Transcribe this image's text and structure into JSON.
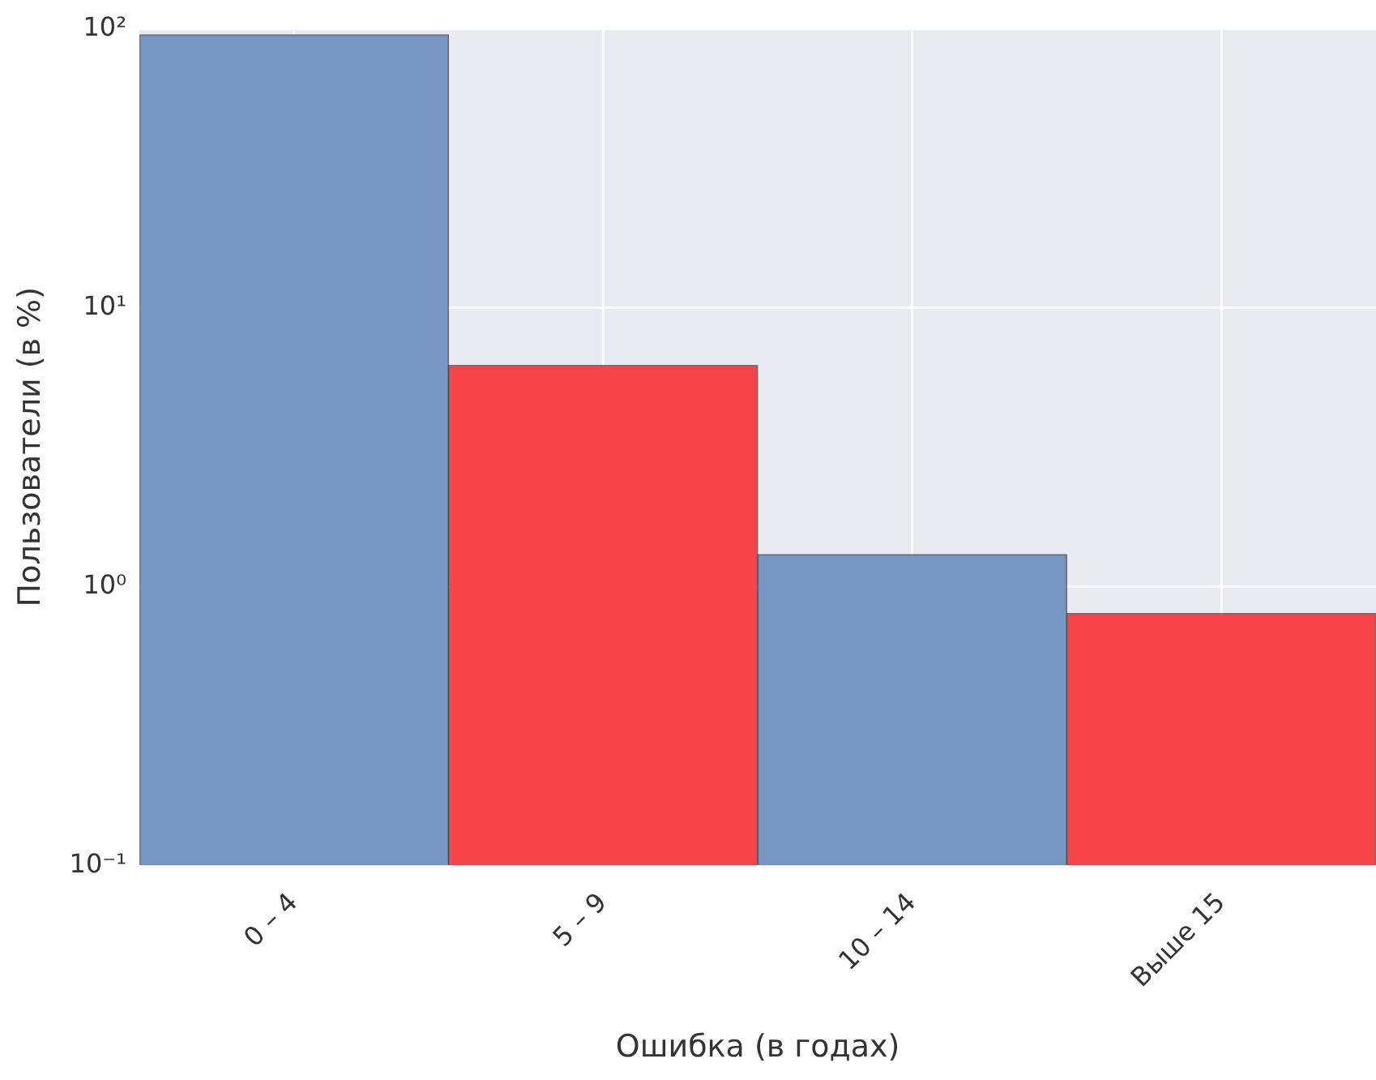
{
  "chart_data": {
    "type": "bar",
    "xlabel": "Ошибка (в годах)",
    "ylabel": "Пользователи (в %)",
    "categories": [
      "0 – 4",
      "5 – 9",
      "10 – 14",
      "Выше 15"
    ],
    "values": [
      95,
      6.2,
      1.3,
      0.8
    ],
    "colors": [
      "#7896c3",
      "#f74449",
      "#7896c3",
      "#f74449"
    ],
    "log": "y",
    "ylim": [
      0.1,
      100
    ],
    "yticks": [
      {
        "value": 0.1,
        "label": "10⁻¹"
      },
      {
        "value": 1,
        "label": "10⁰"
      },
      {
        "value": 10,
        "label": "10¹"
      },
      {
        "value": 100,
        "label": "10²"
      }
    ],
    "grid": true,
    "legend": false
  }
}
